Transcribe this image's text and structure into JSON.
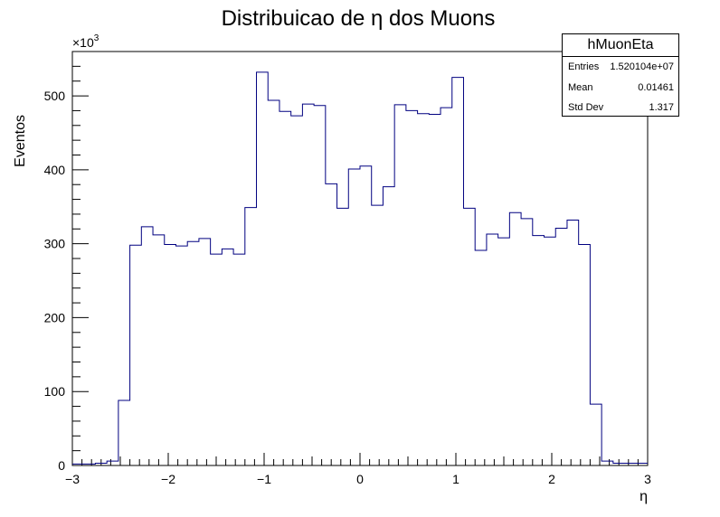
{
  "chart_data": {
    "type": "histogram",
    "title": "Distribuicao de  η dos Muons",
    "xlabel": "η",
    "ylabel": "Eventos",
    "y_multiplier_label": "×10",
    "y_multiplier_exp": "3",
    "xlim": [
      -3,
      3
    ],
    "ylim": [
      0,
      560
    ],
    "x_ticks": [
      -3,
      -2,
      -1,
      0,
      1,
      2,
      3
    ],
    "x_tick_labels": [
      "−3",
      "−2",
      "−1",
      "0",
      "1",
      "2",
      "3"
    ],
    "y_ticks": [
      0,
      100,
      200,
      300,
      400,
      500
    ],
    "y_tick_labels": [
      "0",
      "100",
      "200",
      "300",
      "400",
      "500"
    ],
    "bin_width": 0.12,
    "bin_start": -3.0,
    "values": [
      2,
      2,
      3,
      6,
      88,
      298,
      323,
      312,
      299,
      297,
      303,
      307,
      286,
      293,
      286,
      349,
      532,
      494,
      479,
      473,
      489,
      487,
      381,
      348,
      401,
      405,
      352,
      377,
      488,
      480,
      476,
      475,
      484,
      525,
      348,
      291,
      313,
      308,
      342,
      334,
      311,
      309,
      321,
      332,
      299,
      83,
      6,
      3,
      3,
      3
    ],
    "line_color": "#000080",
    "grid": false,
    "legend": "none"
  },
  "stats": {
    "title": "hMuonEta",
    "rows": [
      {
        "label": "Entries",
        "value": "1.520104e+07"
      },
      {
        "label": "Mean",
        "value": "0.01461"
      },
      {
        "label": "Std Dev",
        "value": "1.317"
      }
    ]
  }
}
